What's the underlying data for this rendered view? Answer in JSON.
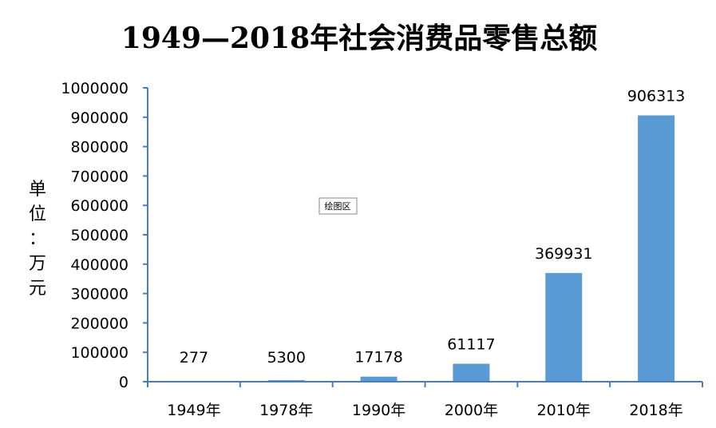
{
  "chart_data": {
    "type": "bar",
    "title": "1949—2018年社会消费品零售总额",
    "ylabel": [
      "单",
      "位",
      "：",
      "万",
      "元"
    ],
    "xlabel": "",
    "categories": [
      "1949年",
      "1978年",
      "1990年",
      "2000年",
      "2010年",
      "2018年"
    ],
    "values": [
      277,
      5300,
      17178,
      61117,
      369931,
      906313
    ],
    "data_labels": [
      "277",
      "5300",
      "17178",
      "61117",
      "369931",
      "906313"
    ],
    "ylim": [
      0,
      1000000
    ],
    "yticks": [
      0,
      100000,
      200000,
      300000,
      400000,
      500000,
      600000,
      700000,
      800000,
      900000,
      1000000
    ],
    "ytick_labels": [
      "0",
      "100000",
      "200000",
      "300000",
      "400000",
      "500000",
      "600000",
      "700000",
      "800000",
      "900000",
      "1000000"
    ],
    "grid": false,
    "legend": "none",
    "bar_color": "#5B9BD5",
    "axis_color": "#4A7EBB"
  },
  "tooltip": {
    "text": "绘图区"
  }
}
